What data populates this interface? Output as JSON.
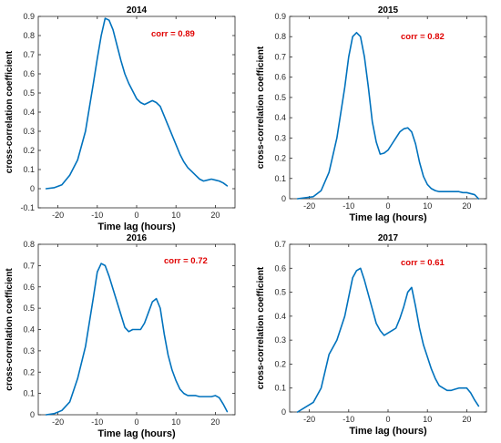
{
  "colors": {
    "line": "#0072BD",
    "annotation": "#e00000"
  },
  "chart_data": [
    {
      "type": "line",
      "title": "2014",
      "xlabel": "Time lag (hours)",
      "ylabel": "cross-correlation coefficient",
      "annotation": "corr = 0.89",
      "xlim": [
        -25,
        25
      ],
      "ylim": [
        -0.1,
        0.9
      ],
      "xticks": [
        -20,
        -10,
        0,
        10,
        20
      ],
      "yticks": [
        -0.1,
        0,
        0.1,
        0.2,
        0.3,
        0.4,
        0.5,
        0.6,
        0.7,
        0.8,
        0.9
      ],
      "ytick_labels": [
        "-0.1",
        "0",
        "0.1",
        "0.2",
        "0.3",
        "0.4",
        "0.5",
        "0.6",
        "0.7",
        "0.8",
        "0.9"
      ],
      "x": [
        -23,
        -21,
        -19,
        -17,
        -15,
        -13,
        -11,
        -10,
        -9,
        -8,
        -7,
        -6,
        -5,
        -4,
        -3,
        -2,
        -1,
        0,
        1,
        2,
        3,
        4,
        5,
        6,
        7,
        8,
        9,
        10,
        11,
        12,
        13,
        14,
        15,
        16,
        17,
        18,
        19,
        20,
        21,
        22,
        23
      ],
      "y": [
        0.0,
        0.005,
        0.02,
        0.07,
        0.15,
        0.3,
        0.55,
        0.68,
        0.8,
        0.89,
        0.88,
        0.83,
        0.75,
        0.67,
        0.6,
        0.55,
        0.51,
        0.47,
        0.45,
        0.44,
        0.45,
        0.46,
        0.45,
        0.43,
        0.38,
        0.33,
        0.28,
        0.23,
        0.18,
        0.14,
        0.11,
        0.09,
        0.07,
        0.05,
        0.04,
        0.045,
        0.05,
        0.045,
        0.04,
        0.03,
        0.015
      ]
    },
    {
      "type": "line",
      "title": "2015",
      "xlabel": "Time lag (hours)",
      "ylabel": "cross-correlation coefficient",
      "annotation": "corr = 0.82",
      "xlim": [
        -25,
        25
      ],
      "ylim": [
        0,
        0.9
      ],
      "xticks": [
        -20,
        -10,
        0,
        10,
        20
      ],
      "yticks": [
        0,
        0.1,
        0.2,
        0.3,
        0.4,
        0.5,
        0.6,
        0.7,
        0.8,
        0.9
      ],
      "ytick_labels": [
        "0",
        "0.1",
        "0.2",
        "0.3",
        "0.4",
        "0.5",
        "0.6",
        "0.7",
        "0.8",
        "0.9"
      ],
      "x": [
        -23,
        -21,
        -19,
        -17,
        -15,
        -13,
        -11,
        -10,
        -9,
        -8,
        -7,
        -6,
        -5,
        -4,
        -3,
        -2,
        -1,
        0,
        1,
        2,
        3,
        4,
        5,
        6,
        7,
        8,
        9,
        10,
        11,
        12,
        13,
        14,
        15,
        16,
        17,
        18,
        19,
        20,
        21,
        22,
        23
      ],
      "y": [
        0.0,
        0.005,
        0.01,
        0.04,
        0.13,
        0.3,
        0.55,
        0.7,
        0.8,
        0.82,
        0.8,
        0.7,
        0.55,
        0.38,
        0.28,
        0.22,
        0.225,
        0.24,
        0.27,
        0.3,
        0.33,
        0.345,
        0.35,
        0.33,
        0.27,
        0.18,
        0.11,
        0.07,
        0.05,
        0.04,
        0.035,
        0.035,
        0.035,
        0.035,
        0.035,
        0.035,
        0.03,
        0.03,
        0.025,
        0.02,
        0.0
      ]
    },
    {
      "type": "line",
      "title": "2016",
      "xlabel": "Time lag (hours)",
      "ylabel": "cross-correlation coefficient",
      "annotation": "corr = 0.72",
      "xlim": [
        -25,
        25
      ],
      "ylim": [
        0,
        0.8
      ],
      "xticks": [
        -20,
        -10,
        0,
        10,
        20
      ],
      "yticks": [
        0,
        0.1,
        0.2,
        0.3,
        0.4,
        0.5,
        0.6,
        0.7,
        0.8
      ],
      "ytick_labels": [
        "0",
        "0.1",
        "0.2",
        "0.3",
        "0.4",
        "0.5",
        "0.6",
        "0.7",
        "0.8"
      ],
      "x": [
        -23,
        -21,
        -19,
        -17,
        -15,
        -13,
        -11,
        -10,
        -9,
        -8,
        -7,
        -6,
        -5,
        -4,
        -3,
        -2,
        -1,
        0,
        1,
        2,
        3,
        4,
        5,
        6,
        7,
        8,
        9,
        10,
        11,
        12,
        13,
        14,
        15,
        16,
        17,
        18,
        19,
        20,
        21,
        22,
        23
      ],
      "y": [
        0.0,
        0.005,
        0.02,
        0.06,
        0.17,
        0.32,
        0.55,
        0.67,
        0.71,
        0.7,
        0.65,
        0.59,
        0.53,
        0.47,
        0.41,
        0.39,
        0.4,
        0.4,
        0.4,
        0.43,
        0.48,
        0.53,
        0.545,
        0.5,
        0.38,
        0.28,
        0.21,
        0.16,
        0.12,
        0.1,
        0.09,
        0.09,
        0.09,
        0.085,
        0.085,
        0.085,
        0.085,
        0.09,
        0.08,
        0.05,
        0.015
      ]
    },
    {
      "type": "line",
      "title": "2017",
      "xlabel": "Time lag (hours)",
      "ylabel": "cross-correlation coefficient",
      "annotation": "corr = 0.61",
      "xlim": [
        -25,
        25
      ],
      "ylim": [
        0,
        0.7
      ],
      "xticks": [
        -20,
        -10,
        0,
        10,
        20
      ],
      "yticks": [
        0,
        0.1,
        0.2,
        0.3,
        0.4,
        0.5,
        0.6,
        0.7
      ],
      "ytick_labels": [
        "0",
        "0.1",
        "0.2",
        "0.3",
        "0.4",
        "0.5",
        "0.6",
        "0.7"
      ],
      "x": [
        -23,
        -21,
        -19,
        -17,
        -15,
        -13,
        -11,
        -10,
        -9,
        -8,
        -7,
        -6,
        -5,
        -4,
        -3,
        -2,
        -1,
        0,
        1,
        2,
        3,
        4,
        5,
        6,
        7,
        8,
        9,
        10,
        11,
        12,
        13,
        14,
        15,
        16,
        17,
        18,
        19,
        20,
        21,
        22,
        23
      ],
      "y": [
        0.0,
        0.02,
        0.04,
        0.1,
        0.24,
        0.3,
        0.4,
        0.48,
        0.56,
        0.59,
        0.6,
        0.55,
        0.49,
        0.43,
        0.37,
        0.34,
        0.32,
        0.33,
        0.34,
        0.35,
        0.39,
        0.44,
        0.5,
        0.52,
        0.44,
        0.35,
        0.28,
        0.23,
        0.18,
        0.14,
        0.11,
        0.1,
        0.09,
        0.09,
        0.095,
        0.1,
        0.1,
        0.1,
        0.08,
        0.05,
        0.025
      ]
    }
  ]
}
